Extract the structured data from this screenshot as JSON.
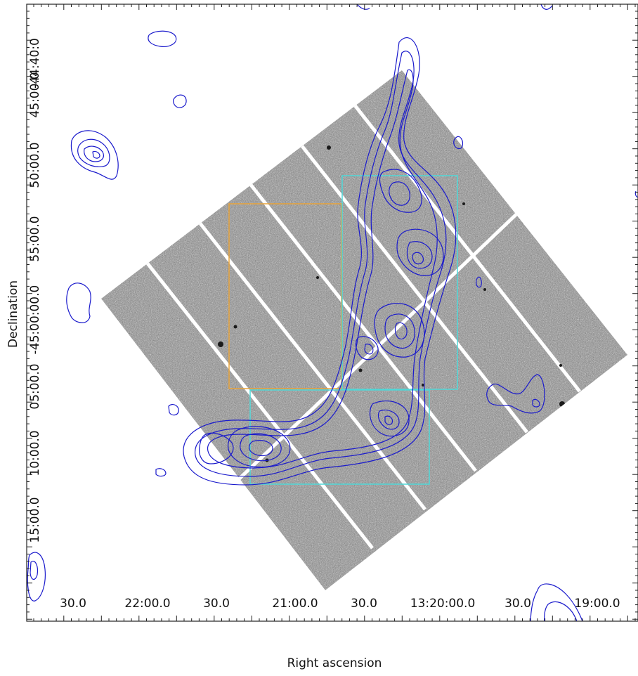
{
  "figure": {
    "xlabel": "Right ascension",
    "ylabel": "Declination",
    "x_tick_labels": [
      "30.0",
      "22:00.0",
      "30.0",
      "21:00.0",
      "30.0",
      "13:20:00.0",
      "30.0",
      "19:00.0"
    ],
    "y_tick_labels": [
      "-44:40:0",
      "45:00.0",
      "50:00.0",
      "55:00.0",
      "-45:00:00.0",
      "05:00.0",
      "10:00.0",
      "15:00.0"
    ],
    "colors": {
      "contours": "#1a1acc",
      "box_orange": "#e8a33a",
      "box_cyan": "#4fd8d8",
      "image_background": "#8a8a8a"
    }
  }
}
